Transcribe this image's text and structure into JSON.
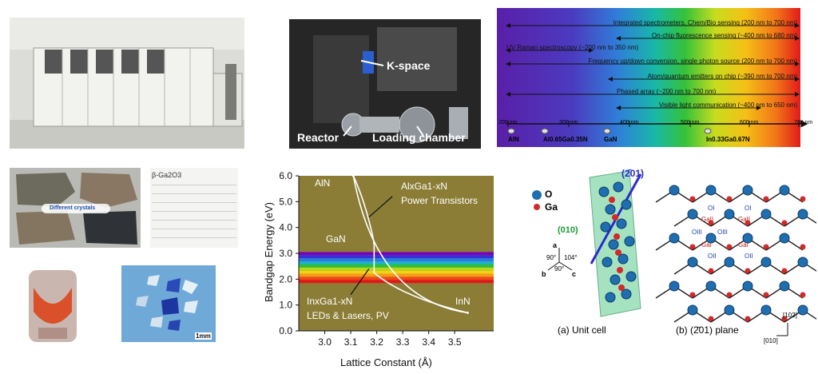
{
  "reactor_photo": {
    "k_space": "K-space",
    "reactor": "Reactor",
    "loading_chamber": "Loading chamber"
  },
  "spectrum": {
    "rows": [
      {
        "text": "Integrated spectrometers, Chem/Bio sensing (200 nm to 700 nm)"
      },
      {
        "text": "On-chip fluorescence sensing (~400 nm to 680 nm)"
      },
      {
        "text": "UV Raman spectroscopy (~200 nm to 350 nm)"
      },
      {
        "text": "Frequency up/down conversion, single photon source (200 nm to 700 nm)"
      },
      {
        "text": "Atom/quantum emitters on chip (~390 nm to 700 nm)"
      },
      {
        "text": "Phased array (~200 nm to 700 nm)"
      },
      {
        "text": "Visible light communication (~400 nm to 650 nm)"
      }
    ],
    "ticks": [
      "200 nm",
      "300 nm",
      "400 nm",
      "500 nm",
      "600 nm",
      "700 nm"
    ],
    "materials": {
      "aln": "AlN",
      "algan": "Al0.65Ga0.35N",
      "gan": "GaN",
      "ingan": "In0.33Ga0.67N"
    }
  },
  "crystals": {
    "different_crystals": "Different crystals",
    "ga2o3_text": "β-Ga2O3",
    "scale_bar": "1mm"
  },
  "chart_data": {
    "type": "line",
    "xlabel": "Lattice Constant (Å)",
    "ylabel": "Bandgap Energy (eV)",
    "xlim": [
      2.9,
      3.65
    ],
    "ylim": [
      0.0,
      6.0
    ],
    "x_ticks": [
      "3.0",
      "3.1",
      "3.2",
      "3.3",
      "3.4",
      "3.5"
    ],
    "y_ticks": [
      "0.0",
      "1.0",
      "2.0",
      "3.0",
      "4.0",
      "5.0",
      "6.0"
    ],
    "points": [
      {
        "name": "AlN",
        "x": 3.11,
        "y": 6.0
      },
      {
        "name": "GaN",
        "x": 3.19,
        "y": 3.4
      },
      {
        "name": "InN",
        "x": 3.55,
        "y": 0.7
      }
    ],
    "annotations": {
      "algan_line1": "AlxGa1-xN",
      "algan_line2": "Power Transistors",
      "ingan_line1": "InxGa1-xN",
      "ingan_line2": "LEDs & Lasers, PV"
    },
    "colors": {
      "background": "#8b7d36",
      "curve": "#ffffff"
    }
  },
  "structure": {
    "legend_o": "O",
    "legend_ga": "Ga",
    "plane_label": "(2̄01)",
    "face_label": "(010)",
    "angle_top": "90°",
    "angle_side": "104°",
    "angle_bottom": "90°",
    "axis_a": "a",
    "axis_b": "b",
    "axis_c": "c",
    "caption_a": "(a) Unit cell",
    "caption_b": "(b) (2̄01) plane",
    "dir_102": "[102]",
    "dir_010": "[010]",
    "site_labels": {
      "oi": "OI",
      "oii": "OII",
      "oiii": "OIII",
      "gai": "GaI",
      "gaii": "GaII"
    }
  }
}
